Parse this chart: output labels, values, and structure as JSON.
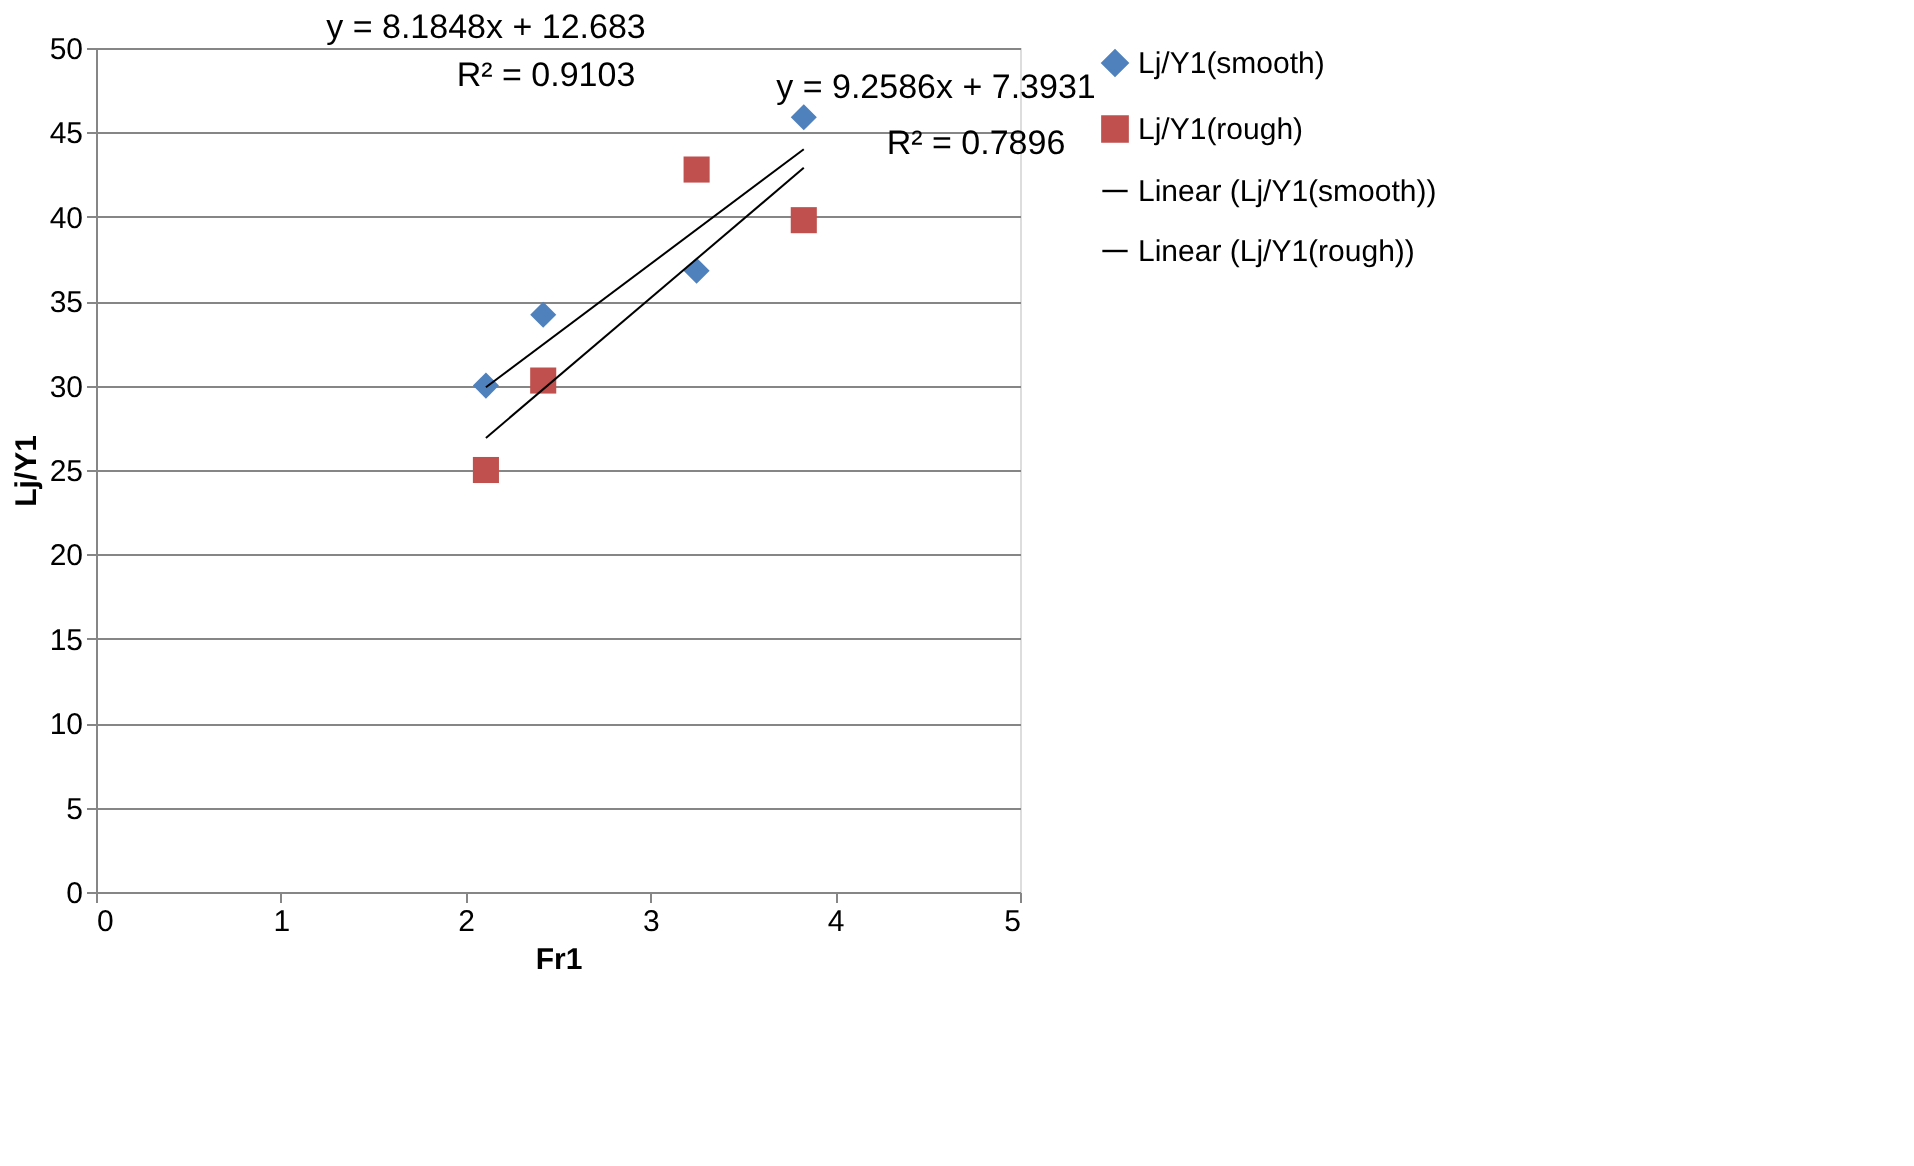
{
  "chart_data": {
    "type": "scatter",
    "xlabel": "Fr1",
    "ylabel": "Lj/Y1",
    "xlim": [
      0,
      5
    ],
    "xticks": [
      0,
      1,
      2,
      3,
      4,
      5
    ],
    "ylim": [
      0,
      50
    ],
    "yticks": [
      0,
      5,
      10,
      15,
      20,
      25,
      30,
      35,
      40,
      45,
      50
    ],
    "grid": "y",
    "legend": "right",
    "series": [
      {
        "name": "Lj/Y1(smooth)",
        "marker": "diamond",
        "color": "#4f81bd",
        "x": [
          2.11,
          2.42,
          3.25,
          3.83
        ],
        "values": [
          30.0,
          34.2,
          36.8,
          45.9
        ]
      },
      {
        "name": "Lj/Y1(rough)",
        "marker": "square",
        "color": "#c0504d",
        "x": [
          2.11,
          2.42,
          3.25,
          3.83
        ],
        "values": [
          25.0,
          30.3,
          42.8,
          39.8
        ]
      },
      {
        "name": "Linear (Lj/Y1(smooth))",
        "type": "line",
        "line_style": "solid",
        "color": "#000000",
        "x": [
          2.11,
          3.83
        ],
        "values": [
          29.9,
          44.0
        ]
      },
      {
        "name": "Linear (Lj/Y1(rough))",
        "type": "line",
        "line_style": "solid",
        "color": "#000000",
        "x": [
          2.11,
          3.83
        ],
        "values": [
          26.9,
          42.9
        ]
      }
    ],
    "annotations": [
      "y = 8.1848x + 12.683",
      "R² = 0.9103",
      "y = 9.2586x + 7.3931",
      "R² = 0.7896"
    ]
  }
}
